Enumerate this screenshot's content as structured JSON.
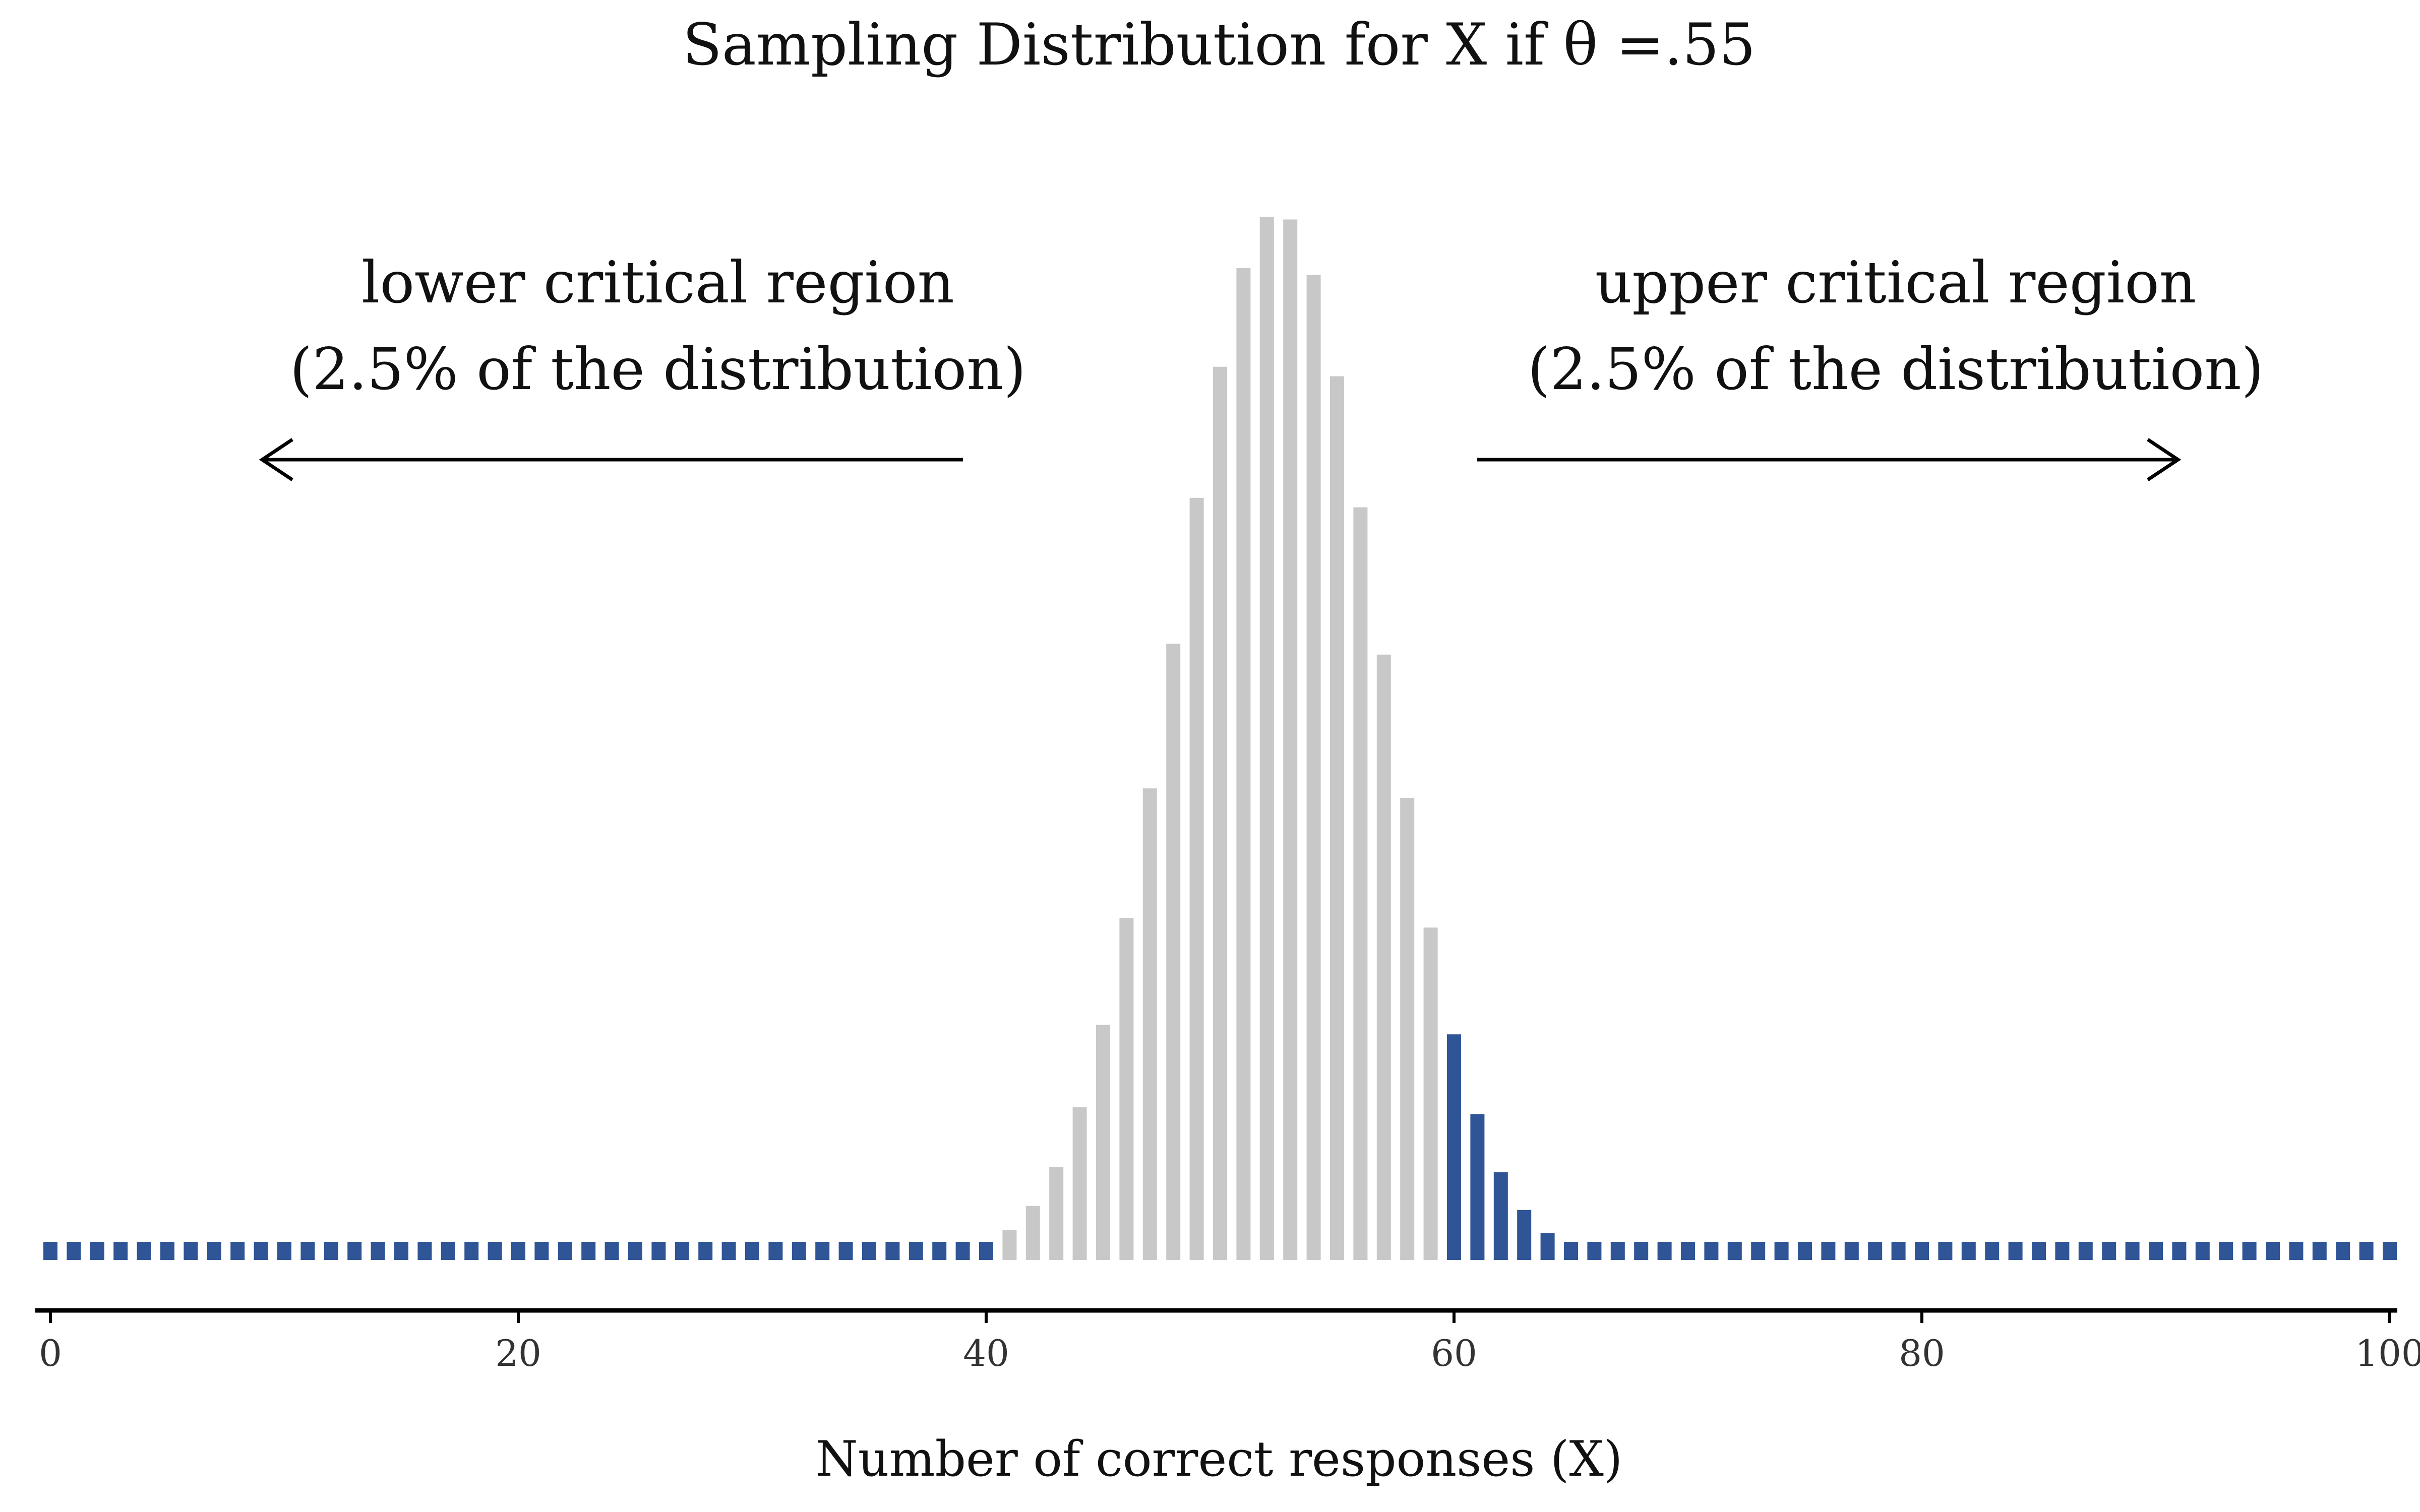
{
  "chart_data": {
    "type": "bar",
    "title": "Sampling Distribution for X if θ =.55",
    "xlabel": "Number of correct responses (X)",
    "ylabel": "",
    "xlim": [
      0,
      100
    ],
    "x_ticks": [
      "0",
      "20",
      "40",
      "60",
      "80",
      "100"
    ],
    "x_tick_values": [
      0,
      20,
      40,
      60,
      80,
      100
    ],
    "ylim": [
      0,
      0.08
    ],
    "grid": false,
    "distribution": {
      "n": 100,
      "theta": 0.55
    },
    "colors": {
      "critical": "#2f5597",
      "non_critical": "#c8c8c8"
    },
    "critical_regions": [
      {
        "name": "lower",
        "x_range": [
          0,
          40
        ],
        "annotation_lines": [
          "lower critical region",
          "(2.5% of the distribution)"
        ],
        "arrow_direction": "left"
      },
      {
        "name": "upper",
        "x_range": [
          60,
          100
        ],
        "annotation_lines": [
          "upper critical region",
          "(2.5% of the distribution)"
        ],
        "arrow_direction": "right"
      }
    ],
    "x": [
      0,
      1,
      2,
      3,
      4,
      5,
      6,
      7,
      8,
      9,
      10,
      11,
      12,
      13,
      14,
      15,
      16,
      17,
      18,
      19,
      20,
      21,
      22,
      23,
      24,
      25,
      26,
      27,
      28,
      29,
      30,
      31,
      32,
      33,
      34,
      35,
      36,
      37,
      38,
      39,
      40,
      41,
      42,
      43,
      44,
      45,
      46,
      47,
      48,
      49,
      50,
      51,
      52,
      53,
      54,
      55,
      56,
      57,
      58,
      59,
      60,
      61,
      62,
      63,
      64,
      65,
      66,
      67,
      68,
      69,
      70,
      71,
      72,
      73,
      74,
      75,
      76,
      77,
      78,
      79,
      80,
      81,
      82,
      83,
      84,
      85,
      86,
      87,
      88,
      89,
      90,
      91,
      92,
      93,
      94,
      95,
      96,
      97,
      98,
      99,
      100
    ],
    "values": [
      0,
      0,
      0,
      0,
      0,
      0,
      0,
      0,
      0,
      0,
      0,
      0,
      0,
      0,
      0,
      0,
      0,
      0,
      0,
      0,
      0,
      0,
      0,
      0,
      0,
      0,
      0,
      0,
      0,
      0,
      0,
      0,
      0,
      0,
      0,
      0,
      4e-05,
      0.0001,
      0.0002,
      0.0005,
      0.0011,
      0.0022,
      0.004,
      0.0069,
      0.0113,
      0.0174,
      0.0253,
      0.0349,
      0.0456,
      0.0564,
      0.0661,
      0.0734,
      0.0772,
      0.077,
      0.0729,
      0.0654,
      0.0557,
      0.0448,
      0.0342,
      0.0246,
      0.0167,
      0.0108,
      0.0065,
      0.0037,
      0.002,
      0.001,
      0.0005,
      0.0002,
      0.0001,
      4e-05,
      0,
      0,
      0,
      0,
      0,
      0,
      0,
      0,
      0,
      0,
      0,
      0,
      0,
      0,
      0,
      0,
      0,
      0,
      0,
      0,
      0,
      0,
      0,
      0,
      0,
      0,
      0,
      0,
      0,
      0,
      0
    ]
  }
}
